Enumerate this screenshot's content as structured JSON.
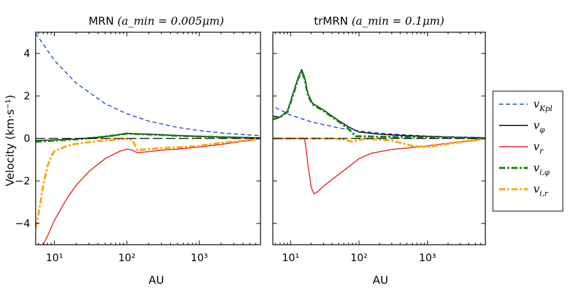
{
  "chart_data": [
    {
      "type": "line",
      "title": "MRN",
      "title_math": "(a_min = 0.005μm)",
      "xlabel": "AU",
      "ylabel": "Velocity (km·s⁻¹)",
      "xscale": "log",
      "xlim": [
        5.5,
        7000
      ],
      "ylim": [
        -5,
        5
      ],
      "xtick_labels": [
        "10¹",
        "10²",
        "10³"
      ],
      "ytick_labels": [
        "4",
        "2",
        "0",
        "−2",
        "−4"
      ],
      "grid": false,
      "series": [
        {
          "name": "v_Kpl",
          "color": "#1f3fe0",
          "style": "dashed",
          "points": [
            [
              5.5,
              4.95
            ],
            [
              10,
              3.67
            ],
            [
              20,
              2.6
            ],
            [
              50,
              1.64
            ],
            [
              100,
              1.16
            ],
            [
              200,
              0.82
            ],
            [
              500,
              0.52
            ],
            [
              1000,
              0.37
            ],
            [
              2000,
              0.26
            ],
            [
              5000,
              0.16
            ],
            [
              7000,
              0.14
            ]
          ]
        },
        {
          "name": "v_φ",
          "color": "#000000",
          "style": "solid",
          "points": [
            [
              5.5,
              -0.1
            ],
            [
              10,
              -0.07
            ],
            [
              20,
              -0.02
            ],
            [
              40,
              0.05
            ],
            [
              70,
              0.15
            ],
            [
              100,
              0.24
            ],
            [
              130,
              0.22
            ],
            [
              200,
              0.2
            ],
            [
              500,
              0.14
            ],
            [
              1000,
              0.1
            ],
            [
              2000,
              0.07
            ],
            [
              5000,
              0.04
            ],
            [
              7000,
              0.03
            ]
          ]
        },
        {
          "name": "v_r",
          "color": "#e0201b",
          "style": "solid",
          "points": [
            [
              7,
              -5
            ],
            [
              8,
              -4.6
            ],
            [
              10,
              -3.85
            ],
            [
              15,
              -2.8
            ],
            [
              20,
              -2.2
            ],
            [
              30,
              -1.55
            ],
            [
              50,
              -0.95
            ],
            [
              80,
              -0.6
            ],
            [
              100,
              -0.5
            ],
            [
              120,
              -0.55
            ],
            [
              140,
              -0.68
            ],
            [
              200,
              -0.62
            ],
            [
              300,
              -0.55
            ],
            [
              500,
              -0.5
            ],
            [
              1000,
              -0.4
            ],
            [
              2000,
              -0.28
            ],
            [
              5000,
              -0.08
            ],
            [
              7000,
              0.0
            ]
          ]
        },
        {
          "name": "v_i,φ",
          "color": "#0f8a0f",
          "style": "dashdot",
          "points": [
            [
              5.5,
              -0.15
            ],
            [
              10,
              -0.1
            ],
            [
              20,
              -0.04
            ],
            [
              40,
              0.05
            ],
            [
              70,
              0.15
            ],
            [
              100,
              0.23
            ],
            [
              130,
              0.21
            ],
            [
              200,
              0.19
            ],
            [
              500,
              0.13
            ],
            [
              1000,
              0.09
            ],
            [
              2000,
              0.06
            ],
            [
              5000,
              0.03
            ],
            [
              7000,
              0.02
            ]
          ]
        },
        {
          "name": "v_i,r",
          "color": "#ffa500",
          "style": "dashdot",
          "points": [
            [
              5.5,
              -4.2
            ],
            [
              6,
              -3.6
            ],
            [
              7,
              -2.2
            ],
            [
              8,
              -1.3
            ],
            [
              9,
              -0.85
            ],
            [
              10,
              -0.6
            ],
            [
              15,
              -0.35
            ],
            [
              20,
              -0.25
            ],
            [
              40,
              -0.12
            ],
            [
              70,
              -0.05
            ],
            [
              100,
              0.0
            ],
            [
              120,
              -0.08
            ],
            [
              140,
              -0.55
            ],
            [
              200,
              -0.5
            ],
            [
              300,
              -0.45
            ],
            [
              500,
              -0.42
            ],
            [
              1000,
              -0.35
            ],
            [
              2000,
              -0.2
            ],
            [
              5000,
              -0.08
            ],
            [
              7000,
              0.0
            ]
          ]
        },
        {
          "name": "zero",
          "color": "#000000",
          "style": "longdash",
          "points": [
            [
              5.5,
              0
            ],
            [
              7000,
              0
            ]
          ]
        }
      ]
    },
    {
      "type": "line",
      "title": "trMRN",
      "title_math": "(a_min = 0.1μm)",
      "xlabel": "AU",
      "xscale": "log",
      "xlim": [
        5.5,
        7000
      ],
      "ylim": [
        -5,
        5
      ],
      "xtick_labels": [
        "10¹",
        "10²",
        "10³"
      ],
      "grid": false,
      "series": [
        {
          "name": "v_Kpl",
          "color": "#1f3fe0",
          "style": "dashed",
          "points": [
            [
              6,
              1.45
            ],
            [
              10,
              1.1
            ],
            [
              20,
              0.78
            ],
            [
              50,
              0.5
            ],
            [
              100,
              0.35
            ],
            [
              200,
              0.25
            ],
            [
              500,
              0.16
            ],
            [
              1000,
              0.11
            ],
            [
              2000,
              0.08
            ],
            [
              5000,
              0.05
            ],
            [
              7000,
              0.04
            ]
          ]
        },
        {
          "name": "v_φ",
          "color": "#000000",
          "style": "solid",
          "points": [
            [
              5.5,
              1.05
            ],
            [
              7,
              1.0
            ],
            [
              9,
              1.3
            ],
            [
              11,
              2.2
            ],
            [
              13,
              2.9
            ],
            [
              14.5,
              3.25
            ],
            [
              16,
              2.9
            ],
            [
              18,
              2.1
            ],
            [
              21,
              1.65
            ],
            [
              30,
              1.35
            ],
            [
              50,
              0.85
            ],
            [
              70,
              0.55
            ],
            [
              100,
              0.3
            ],
            [
              200,
              0.2
            ],
            [
              500,
              0.13
            ],
            [
              1000,
              0.1
            ],
            [
              2000,
              0.07
            ],
            [
              5000,
              0.04
            ],
            [
              7000,
              0.03
            ]
          ]
        },
        {
          "name": "v_r",
          "color": "#e0201b",
          "style": "solid",
          "points": [
            [
              5.5,
              0
            ],
            [
              16,
              0
            ],
            [
              17,
              -0.6
            ],
            [
              18,
              -1.3
            ],
            [
              20,
              -2.3
            ],
            [
              22,
              -2.6
            ],
            [
              25,
              -2.5
            ],
            [
              30,
              -2.25
            ],
            [
              50,
              -1.7
            ],
            [
              80,
              -1.2
            ],
            [
              100,
              -0.95
            ],
            [
              150,
              -0.7
            ],
            [
              300,
              -0.52
            ],
            [
              500,
              -0.45
            ],
            [
              1000,
              -0.35
            ],
            [
              2000,
              -0.22
            ],
            [
              5000,
              -0.08
            ],
            [
              7000,
              0.0
            ]
          ]
        },
        {
          "name": "v_i,φ",
          "color": "#0f8a0f",
          "style": "dashdot",
          "points": [
            [
              5.5,
              0.9
            ],
            [
              7,
              1.0
            ],
            [
              9,
              1.25
            ],
            [
              11,
              2.1
            ],
            [
              13,
              2.85
            ],
            [
              14.5,
              3.15
            ],
            [
              16,
              2.8
            ],
            [
              18,
              2.0
            ],
            [
              21,
              1.6
            ],
            [
              30,
              1.3
            ],
            [
              50,
              0.8
            ],
            [
              70,
              0.45
            ],
            [
              90,
              0.1
            ],
            [
              120,
              0.1
            ],
            [
              200,
              0.08
            ],
            [
              500,
              0.06
            ],
            [
              1000,
              0.05
            ],
            [
              2000,
              0.04
            ],
            [
              5000,
              0.02
            ],
            [
              7000,
              0.02
            ]
          ]
        },
        {
          "name": "v_i,r",
          "color": "#ffa500",
          "style": "dashdot",
          "points": [
            [
              5.5,
              0
            ],
            [
              20,
              0
            ],
            [
              40,
              0
            ],
            [
              60,
              -0.05
            ],
            [
              80,
              -0.15
            ],
            [
              100,
              -0.05
            ],
            [
              150,
              -0.02
            ],
            [
              300,
              -0.1
            ],
            [
              600,
              -0.35
            ],
            [
              1000,
              -0.4
            ],
            [
              2000,
              -0.25
            ],
            [
              5000,
              -0.08
            ],
            [
              7000,
              0.0
            ]
          ]
        },
        {
          "name": "zero",
          "color": "#000000",
          "style": "longdash",
          "points": [
            [
              5.5,
              0
            ],
            [
              7000,
              0
            ]
          ]
        }
      ]
    }
  ],
  "legend": {
    "placement": "right",
    "entries": [
      {
        "label": "v_Kpl",
        "color": "#1f3fe0",
        "style": "dashed"
      },
      {
        "label": "v_φ",
        "color": "#000000",
        "style": "solid"
      },
      {
        "label": "v_r",
        "color": "#e0201b",
        "style": "solid"
      },
      {
        "label": "v_i,φ",
        "color": "#0f8a0f",
        "style": "dashdot"
      },
      {
        "label": "v_i,r",
        "color": "#ffa500",
        "style": "dashdot"
      }
    ]
  }
}
